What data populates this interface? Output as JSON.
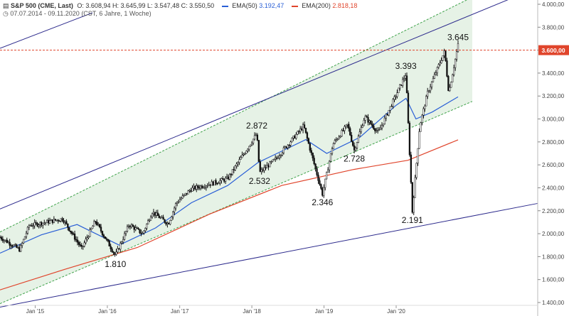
{
  "header": {
    "icon": "chart-bars-icon",
    "symbol": "S&P 500 (CME, Last)",
    "open": "O: 3.608,94",
    "high": "H: 3.645,99",
    "low": "L: 3.547,48",
    "close": "C: 3.550,50",
    "ema50_label": "EMA(50)",
    "ema50_value": "3.192,47",
    "ema200_label": "EMA(200)",
    "ema200_value": "2.818,18",
    "clock_icon": "clock-icon",
    "range": "07.07.2014 - 09.11.2020",
    "timezone": "(CST, 6 Jahre, 1 Woche)"
  },
  "colors": {
    "candles": "#111111",
    "ema50": "#2a5fd6",
    "ema200": "#e0452c",
    "channel_fill": "#e6f2e6",
    "channel_border": "#3fa24a",
    "trendline": "#2c2a8c",
    "price_marker": "#e0452c"
  },
  "chart_data": {
    "type": "line",
    "title": "S&P 500 (CME, Last)",
    "x_range": [
      "2014-07-07",
      "2020-11-09"
    ],
    "ylim": [
      1400,
      4000
    ],
    "y_ticks": [
      "4.000,00",
      "3.800,00",
      "3.600,00",
      "3.400,00",
      "3.200,00",
      "3.000,00",
      "2.800,00",
      "2.600,00",
      "2.400,00",
      "2.200,00",
      "2.000,00",
      "1.800,00",
      "1.600,00",
      "1.400,00"
    ],
    "x_ticks": [
      "Jan '15",
      "Jan '16",
      "Jan '17",
      "Jan '18",
      "Jan '19",
      "Jan '20"
    ],
    "current_price_label": "3.600,00",
    "series": [
      {
        "name": "S&P 500 (CME, Last)",
        "x": [
          "2014-07-07",
          "2014-10-15",
          "2014-12-01",
          "2015-05-20",
          "2015-08-24",
          "2015-11-01",
          "2016-02-11",
          "2016-04-20",
          "2016-06-27",
          "2016-08-15",
          "2016-11-04",
          "2016-12-15",
          "2017-03-01",
          "2017-06-15",
          "2017-09-01",
          "2018-01-26",
          "2018-02-09",
          "2018-05-01",
          "2018-09-20",
          "2018-12-24",
          "2019-02-15",
          "2019-04-30",
          "2019-06-03",
          "2019-07-26",
          "2019-10-03",
          "2020-02-19",
          "2020-03-23",
          "2020-04-29",
          "2020-06-08",
          "2020-09-02",
          "2020-09-23",
          "2020-11-09"
        ],
        "values": [
          1970,
          1860,
          2070,
          2130,
          1870,
          2110,
          1810,
          2080,
          2000,
          2190,
          2085,
          2270,
          2390,
          2440,
          2480,
          2872,
          2532,
          2650,
          2940,
          2346,
          2780,
          2950,
          2728,
          3020,
          2880,
          3393,
          2191,
          2940,
          3230,
          3590,
          3230,
          3645
        ]
      },
      {
        "name": "EMA(50)",
        "x": [
          "2014-07-07",
          "2015-02-01",
          "2015-08-01",
          "2016-03-01",
          "2016-09-01",
          "2017-03-01",
          "2017-09-01",
          "2018-02-01",
          "2018-10-01",
          "2019-01-15",
          "2019-07-01",
          "2020-01-01",
          "2020-02-20",
          "2020-04-10",
          "2020-07-01",
          "2020-11-09"
        ],
        "values": [
          1830,
          1990,
          2080,
          1900,
          2050,
          2270,
          2420,
          2620,
          2820,
          2700,
          2840,
          3120,
          3180,
          3000,
          3060,
          3192.47
        ]
      },
      {
        "name": "EMA(200)",
        "x": [
          "2014-07-07",
          "2015-06-01",
          "2016-06-01",
          "2017-06-01",
          "2018-06-01",
          "2019-06-01",
          "2020-03-01",
          "2020-11-09"
        ],
        "values": [
          1510,
          1690,
          1880,
          2170,
          2420,
          2560,
          2640,
          2818.18
        ]
      }
    ],
    "annotations": [
      {
        "label": "2.872",
        "x": "2018-01-26",
        "y": 2872,
        "position": "above"
      },
      {
        "label": "2.532",
        "x": "2018-02-09",
        "y": 2532,
        "position": "below"
      },
      {
        "label": "2.346",
        "x": "2018-12-24",
        "y": 2346,
        "position": "below"
      },
      {
        "label": "2.728",
        "x": "2019-06-03",
        "y": 2728,
        "position": "below"
      },
      {
        "label": "3.393",
        "x": "2020-02-19",
        "y": 3393,
        "position": "above"
      },
      {
        "label": "2.191",
        "x": "2020-03-23",
        "y": 2191,
        "position": "below"
      },
      {
        "label": "3.645",
        "x": "2020-11-09",
        "y": 3645,
        "position": "above"
      },
      {
        "label": "1.810",
        "x": "2016-02-11",
        "y": 1810,
        "position": "below"
      }
    ],
    "channel": {
      "upper": [
        {
          "x": "2014-07-07",
          "y": 2015
        },
        {
          "x": "2020-11-09",
          "y": 4000
        }
      ],
      "lower": [
        {
          "x": "2014-07-07",
          "y": 1390
        },
        {
          "x": "2020-11-09",
          "y": 3100
        }
      ]
    },
    "trendlines": [
      {
        "from": {
          "x": "2014-07-07",
          "y": 2215
        },
        "to": {
          "x": "2020-11-09",
          "y": 3860
        }
      },
      {
        "from": {
          "x": "2014-07-07",
          "y": 1360
        },
        "to": {
          "x": "2020-11-09",
          "y": 2130
        }
      }
    ],
    "reference_line": {
      "y": 3600
    },
    "grid": false
  }
}
